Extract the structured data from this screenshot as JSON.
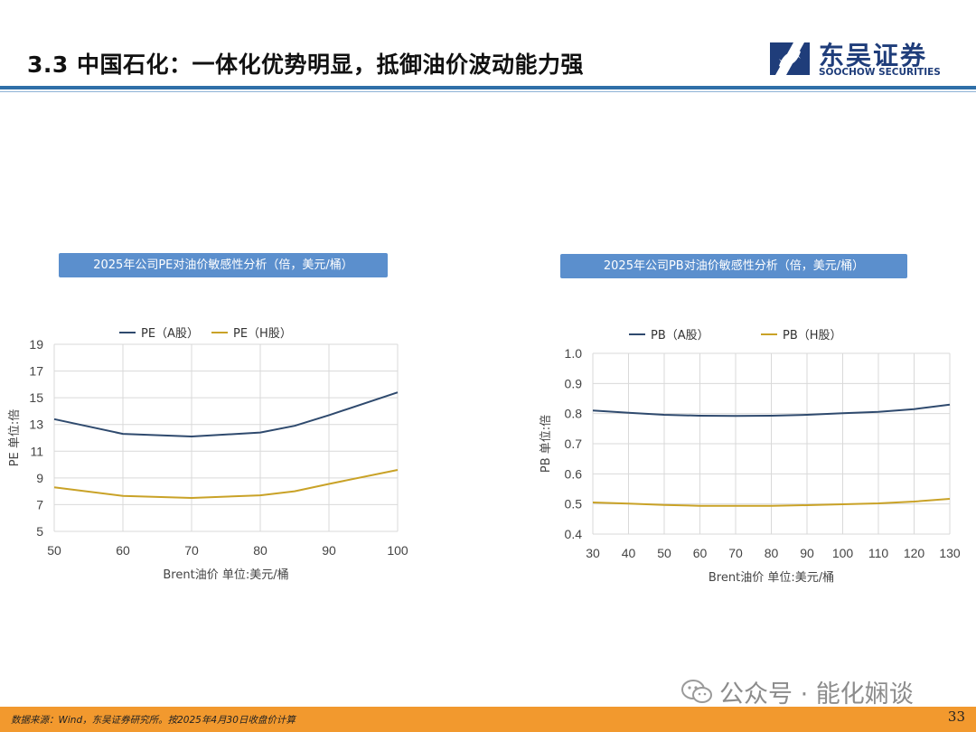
{
  "header": {
    "title": "3.3 中国石化：一体化优势明显，抵御油价波动能力强",
    "logo_cn": "东吴证券",
    "logo_en": "SOOCHOW SECURITIES"
  },
  "colors": {
    "a_share": "#2f4a6e",
    "h_share": "#c9a227",
    "banner": "#5b8fcd",
    "rule": "#2f6fa8",
    "footer": "#f2992e",
    "logo": "#1f3d7a"
  },
  "chart_data": [
    {
      "type": "line",
      "banner": "2025年公司PE对油价敏感性分析（倍，美元/桶）",
      "xlabel": "Brent油价  单位:美元/桶",
      "ylabel": "PE  单位:倍",
      "xlim": [
        50,
        100
      ],
      "ylim": [
        5,
        19
      ],
      "xticks": [
        50,
        60,
        70,
        80,
        90,
        100
      ],
      "yticks": [
        5,
        7,
        9,
        11,
        13,
        15,
        17,
        19
      ],
      "grid": true,
      "legend_position": "top",
      "x": [
        50,
        60,
        70,
        80,
        85,
        90,
        100
      ],
      "series": [
        {
          "name": "PE（A股）",
          "color": "#2f4a6e",
          "values": [
            13.4,
            12.3,
            12.1,
            12.4,
            12.9,
            13.7,
            15.4
          ]
        },
        {
          "name": "PE（H股）",
          "color": "#c9a227",
          "values": [
            8.3,
            7.65,
            7.5,
            7.7,
            8.0,
            8.55,
            9.6
          ]
        }
      ]
    },
    {
      "type": "line",
      "banner": "2025年公司PB对油价敏感性分析（倍，美元/桶）",
      "xlabel": "Brent油价  单位:美元/桶",
      "ylabel": "PB  单位:倍",
      "xlim": [
        30,
        130
      ],
      "ylim": [
        0.4,
        1.0
      ],
      "xticks": [
        30,
        40,
        50,
        60,
        70,
        80,
        90,
        100,
        110,
        120,
        130
      ],
      "yticks": [
        0.4,
        0.5,
        0.6,
        0.7,
        0.8,
        0.9,
        1.0
      ],
      "ytick_labels": [
        "0.4",
        "0.5",
        "0.6",
        "0.7",
        "0.8",
        "0.9",
        "1.0"
      ],
      "grid": true,
      "legend_position": "top",
      "x": [
        30,
        40,
        50,
        60,
        70,
        80,
        90,
        100,
        110,
        120,
        130
      ],
      "series": [
        {
          "name": "PB（A股）",
          "color": "#2f4a6e",
          "values": [
            0.81,
            0.803,
            0.796,
            0.793,
            0.792,
            0.793,
            0.796,
            0.801,
            0.806,
            0.815,
            0.83
          ]
        },
        {
          "name": "PB（H股）",
          "color": "#c9a227",
          "values": [
            0.505,
            0.501,
            0.497,
            0.494,
            0.494,
            0.494,
            0.496,
            0.499,
            0.502,
            0.508,
            0.517
          ]
        }
      ]
    }
  ],
  "footer": {
    "note": "数据来源：Wind，东吴证券研究所。按2025年4月30日收盘价计算",
    "page_number": "33"
  },
  "watermark": {
    "text": "公众号 · 能化娴谈"
  }
}
